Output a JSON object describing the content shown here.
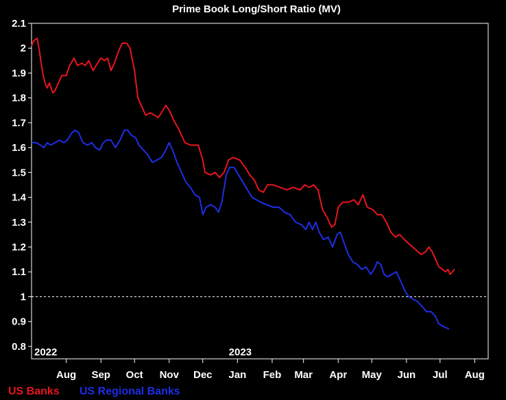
{
  "chart_data": {
    "type": "line",
    "title": "Prime Book Long/Short Ratio (MV)",
    "ylim": [
      0.75,
      2.1
    ],
    "yticks": [
      "2.1",
      "2",
      "1.9",
      "1.8",
      "1.7",
      "1.6",
      "1.5",
      "1.4",
      "1.3",
      "1.2",
      "1.1",
      "1",
      "0.9",
      "0.8"
    ],
    "xlim": [
      "2022-07-01",
      "2023-08-13"
    ],
    "xticks": [
      {
        "label": "Aug",
        "date": "2022-08-01"
      },
      {
        "label": "Sep",
        "date": "2022-09-01"
      },
      {
        "label": "Oct",
        "date": "2022-10-01"
      },
      {
        "label": "Nov",
        "date": "2022-11-01"
      },
      {
        "label": "Dec",
        "date": "2022-12-01"
      },
      {
        "label": "Jan",
        "date": "2023-01-01"
      },
      {
        "label": "Feb",
        "date": "2023-02-01"
      },
      {
        "label": "Mar",
        "date": "2023-03-01"
      },
      {
        "label": "Apr",
        "date": "2023-04-01"
      },
      {
        "label": "May",
        "date": "2023-05-01"
      },
      {
        "label": "Jun",
        "date": "2023-06-01"
      },
      {
        "label": "Jul",
        "date": "2023-07-01"
      },
      {
        "label": "Aug",
        "date": "2023-08-01"
      }
    ],
    "year_labels": [
      {
        "label": "2022",
        "date": "2022-07-01"
      },
      {
        "label": "2023",
        "date": "2023-01-01"
      }
    ],
    "reference_line": {
      "y": 1.0,
      "style": "dashed",
      "color": "#ffffff"
    },
    "grid": false,
    "legend_position": "bottom-left",
    "series": [
      {
        "name": "US Banks",
        "color": "#e8141e",
        "points": [
          [
            "2022-07-01",
            2.01
          ],
          [
            "2022-07-03",
            2.03
          ],
          [
            "2022-07-06",
            2.04
          ],
          [
            "2022-07-08",
            1.99
          ],
          [
            "2022-07-11",
            1.9
          ],
          [
            "2022-07-13",
            1.86
          ],
          [
            "2022-07-15",
            1.84
          ],
          [
            "2022-07-17",
            1.86
          ],
          [
            "2022-07-20",
            1.82
          ],
          [
            "2022-07-22",
            1.83
          ],
          [
            "2022-07-25",
            1.86
          ],
          [
            "2022-07-28",
            1.89
          ],
          [
            "2022-08-01",
            1.89
          ],
          [
            "2022-08-04",
            1.93
          ],
          [
            "2022-08-08",
            1.96
          ],
          [
            "2022-08-11",
            1.93
          ],
          [
            "2022-08-15",
            1.94
          ],
          [
            "2022-08-18",
            1.93
          ],
          [
            "2022-08-21",
            1.95
          ],
          [
            "2022-08-25",
            1.91
          ],
          [
            "2022-08-29",
            1.94
          ],
          [
            "2022-09-01",
            1.96
          ],
          [
            "2022-09-04",
            1.95
          ],
          [
            "2022-09-07",
            1.96
          ],
          [
            "2022-09-10",
            1.91
          ],
          [
            "2022-09-13",
            1.94
          ],
          [
            "2022-09-17",
            1.99
          ],
          [
            "2022-09-20",
            2.02
          ],
          [
            "2022-09-24",
            2.02
          ],
          [
            "2022-09-27",
            2.0
          ],
          [
            "2022-10-01",
            1.91
          ],
          [
            "2022-10-04",
            1.8
          ],
          [
            "2022-10-08",
            1.76
          ],
          [
            "2022-10-11",
            1.73
          ],
          [
            "2022-10-15",
            1.74
          ],
          [
            "2022-10-19",
            1.73
          ],
          [
            "2022-10-22",
            1.72
          ],
          [
            "2022-10-25",
            1.74
          ],
          [
            "2022-10-29",
            1.77
          ],
          [
            "2022-11-01",
            1.75
          ],
          [
            "2022-11-05",
            1.71
          ],
          [
            "2022-11-10",
            1.67
          ],
          [
            "2022-11-15",
            1.62
          ],
          [
            "2022-11-20",
            1.61
          ],
          [
            "2022-11-27",
            1.61
          ],
          [
            "2022-12-01",
            1.55
          ],
          [
            "2022-12-03",
            1.5
          ],
          [
            "2022-12-08",
            1.49
          ],
          [
            "2022-12-12",
            1.5
          ],
          [
            "2022-12-16",
            1.48
          ],
          [
            "2022-12-20",
            1.5
          ],
          [
            "2022-12-24",
            1.55
          ],
          [
            "2022-12-28",
            1.56
          ],
          [
            "2023-01-03",
            1.55
          ],
          [
            "2023-01-08",
            1.52
          ],
          [
            "2023-01-12",
            1.49
          ],
          [
            "2023-01-16",
            1.47
          ],
          [
            "2023-01-20",
            1.43
          ],
          [
            "2023-01-24",
            1.42
          ],
          [
            "2023-01-28",
            1.45
          ],
          [
            "2023-02-02",
            1.45
          ],
          [
            "2023-02-08",
            1.44
          ],
          [
            "2023-02-14",
            1.43
          ],
          [
            "2023-02-20",
            1.44
          ],
          [
            "2023-02-26",
            1.43
          ],
          [
            "2023-03-02",
            1.45
          ],
          [
            "2023-03-06",
            1.44
          ],
          [
            "2023-03-10",
            1.45
          ],
          [
            "2023-03-14",
            1.43
          ],
          [
            "2023-03-18",
            1.35
          ],
          [
            "2023-03-22",
            1.32
          ],
          [
            "2023-03-26",
            1.28
          ],
          [
            "2023-03-29",
            1.29
          ],
          [
            "2023-04-01",
            1.36
          ],
          [
            "2023-04-05",
            1.38
          ],
          [
            "2023-04-10",
            1.38
          ],
          [
            "2023-04-15",
            1.39
          ],
          [
            "2023-04-19",
            1.37
          ],
          [
            "2023-04-23",
            1.41
          ],
          [
            "2023-04-27",
            1.36
          ],
          [
            "2023-05-02",
            1.35
          ],
          [
            "2023-05-06",
            1.33
          ],
          [
            "2023-05-10",
            1.33
          ],
          [
            "2023-05-14",
            1.3
          ],
          [
            "2023-05-18",
            1.26
          ],
          [
            "2023-05-22",
            1.24
          ],
          [
            "2023-05-26",
            1.25
          ],
          [
            "2023-05-30",
            1.23
          ],
          [
            "2023-06-04",
            1.21
          ],
          [
            "2023-06-09",
            1.19
          ],
          [
            "2023-06-14",
            1.17
          ],
          [
            "2023-06-18",
            1.18
          ],
          [
            "2023-06-21",
            1.2
          ],
          [
            "2023-06-24",
            1.18
          ],
          [
            "2023-06-27",
            1.15
          ],
          [
            "2023-06-30",
            1.12
          ],
          [
            "2023-07-03",
            1.11
          ],
          [
            "2023-07-06",
            1.1
          ],
          [
            "2023-07-08",
            1.11
          ],
          [
            "2023-07-10",
            1.09
          ],
          [
            "2023-07-12",
            1.1
          ],
          [
            "2023-07-14",
            1.11
          ]
        ]
      },
      {
        "name": "US Regional Banks",
        "color": "#1e2ee6",
        "points": [
          [
            "2022-07-01",
            1.62
          ],
          [
            "2022-07-05",
            1.62
          ],
          [
            "2022-07-09",
            1.61
          ],
          [
            "2022-07-12",
            1.6
          ],
          [
            "2022-07-15",
            1.62
          ],
          [
            "2022-07-18",
            1.61
          ],
          [
            "2022-07-22",
            1.62
          ],
          [
            "2022-07-26",
            1.63
          ],
          [
            "2022-07-30",
            1.62
          ],
          [
            "2022-08-02",
            1.63
          ],
          [
            "2022-08-06",
            1.66
          ],
          [
            "2022-08-09",
            1.67
          ],
          [
            "2022-08-12",
            1.66
          ],
          [
            "2022-08-16",
            1.62
          ],
          [
            "2022-08-20",
            1.61
          ],
          [
            "2022-08-24",
            1.62
          ],
          [
            "2022-08-27",
            1.6
          ],
          [
            "2022-08-31",
            1.59
          ],
          [
            "2022-09-03",
            1.62
          ],
          [
            "2022-09-06",
            1.63
          ],
          [
            "2022-09-10",
            1.63
          ],
          [
            "2022-09-14",
            1.6
          ],
          [
            "2022-09-18",
            1.63
          ],
          [
            "2022-09-22",
            1.67
          ],
          [
            "2022-09-25",
            1.67
          ],
          [
            "2022-09-28",
            1.65
          ],
          [
            "2022-10-02",
            1.64
          ],
          [
            "2022-10-05",
            1.61
          ],
          [
            "2022-10-09",
            1.59
          ],
          [
            "2022-10-13",
            1.57
          ],
          [
            "2022-10-17",
            1.54
          ],
          [
            "2022-10-21",
            1.55
          ],
          [
            "2022-10-25",
            1.56
          ],
          [
            "2022-10-29",
            1.59
          ],
          [
            "2022-11-01",
            1.62
          ],
          [
            "2022-11-04",
            1.59
          ],
          [
            "2022-11-08",
            1.54
          ],
          [
            "2022-11-12",
            1.5
          ],
          [
            "2022-11-16",
            1.46
          ],
          [
            "2022-11-20",
            1.44
          ],
          [
            "2022-11-24",
            1.41
          ],
          [
            "2022-11-28",
            1.4
          ],
          [
            "2022-12-01",
            1.33
          ],
          [
            "2022-12-04",
            1.36
          ],
          [
            "2022-12-08",
            1.37
          ],
          [
            "2022-12-12",
            1.36
          ],
          [
            "2022-12-15",
            1.34
          ],
          [
            "2022-12-18",
            1.38
          ],
          [
            "2022-12-22",
            1.49
          ],
          [
            "2022-12-25",
            1.52
          ],
          [
            "2022-12-29",
            1.52
          ],
          [
            "2023-01-02",
            1.49
          ],
          [
            "2023-01-06",
            1.46
          ],
          [
            "2023-01-10",
            1.43
          ],
          [
            "2023-01-14",
            1.4
          ],
          [
            "2023-01-18",
            1.39
          ],
          [
            "2023-01-22",
            1.38
          ],
          [
            "2023-01-27",
            1.37
          ],
          [
            "2023-02-02",
            1.36
          ],
          [
            "2023-02-07",
            1.36
          ],
          [
            "2023-02-12",
            1.34
          ],
          [
            "2023-02-17",
            1.33
          ],
          [
            "2023-02-22",
            1.3
          ],
          [
            "2023-02-27",
            1.29
          ],
          [
            "2023-03-03",
            1.27
          ],
          [
            "2023-03-06",
            1.3
          ],
          [
            "2023-03-09",
            1.27
          ],
          [
            "2023-03-12",
            1.3
          ],
          [
            "2023-03-15",
            1.26
          ],
          [
            "2023-03-19",
            1.23
          ],
          [
            "2023-03-23",
            1.24
          ],
          [
            "2023-03-27",
            1.2
          ],
          [
            "2023-03-31",
            1.25
          ],
          [
            "2023-04-03",
            1.26
          ],
          [
            "2023-04-06",
            1.22
          ],
          [
            "2023-04-10",
            1.17
          ],
          [
            "2023-04-14",
            1.14
          ],
          [
            "2023-04-18",
            1.13
          ],
          [
            "2023-04-22",
            1.11
          ],
          [
            "2023-04-26",
            1.12
          ],
          [
            "2023-04-30",
            1.09
          ],
          [
            "2023-05-03",
            1.11
          ],
          [
            "2023-05-06",
            1.14
          ],
          [
            "2023-05-09",
            1.13
          ],
          [
            "2023-05-12",
            1.09
          ],
          [
            "2023-05-15",
            1.08
          ],
          [
            "2023-05-19",
            1.09
          ],
          [
            "2023-05-23",
            1.1
          ],
          [
            "2023-05-27",
            1.06
          ],
          [
            "2023-05-31",
            1.02
          ],
          [
            "2023-06-03",
            1.0
          ],
          [
            "2023-06-07",
            0.99
          ],
          [
            "2023-06-11",
            0.98
          ],
          [
            "2023-06-15",
            0.96
          ],
          [
            "2023-06-19",
            0.94
          ],
          [
            "2023-06-23",
            0.94
          ],
          [
            "2023-06-27",
            0.92
          ],
          [
            "2023-06-30",
            0.89
          ],
          [
            "2023-07-04",
            0.88
          ],
          [
            "2023-07-09",
            0.87
          ]
        ]
      }
    ]
  }
}
